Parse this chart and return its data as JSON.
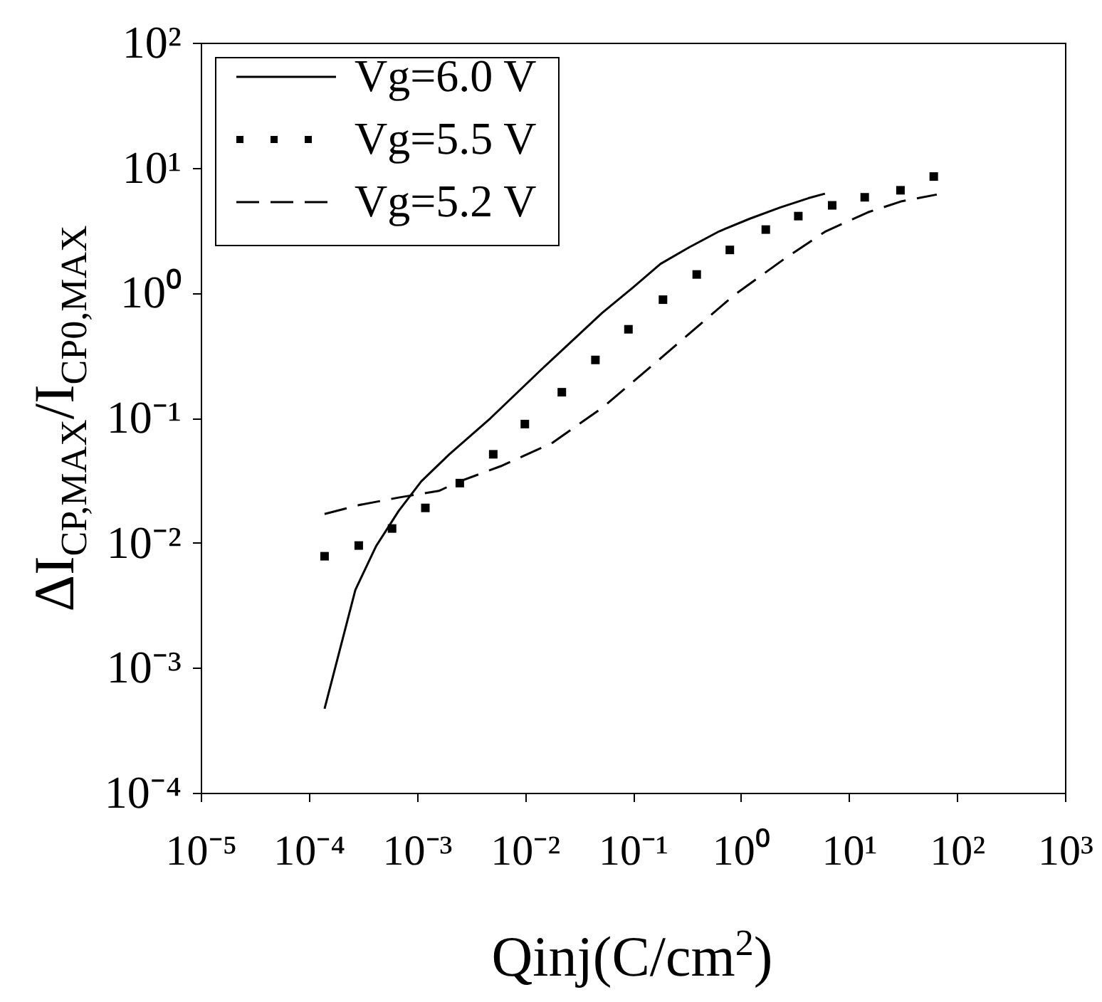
{
  "chart_data": {
    "type": "line",
    "xlabel": "Qinj(C/cm$^{2}$)",
    "ylabel": "ΔI$_{CP,MAX}$/I$_{CP0,MAX}$",
    "log": "xy",
    "grid": false,
    "legend": "top left",
    "xlim": [
      1e-05,
      1000
    ],
    "ylim": [
      0.0001,
      100
    ],
    "xticks": [
      {
        "value": 1e-05,
        "label": "10⁻⁵"
      },
      {
        "value": 0.0001,
        "label": "10⁻⁴"
      },
      {
        "value": 0.001,
        "label": "10⁻³"
      },
      {
        "value": 0.01,
        "label": "10⁻²"
      },
      {
        "value": 0.1,
        "label": "10⁻¹"
      },
      {
        "value": 1,
        "label": "10⁰"
      },
      {
        "value": 10,
        "label": "10¹"
      },
      {
        "value": 100,
        "label": "10²"
      },
      {
        "value": 1000,
        "label": "10³"
      }
    ],
    "yticks": [
      {
        "value": 0.0001,
        "label": "10⁻⁴"
      },
      {
        "value": 0.001,
        "label": "10⁻³"
      },
      {
        "value": 0.01,
        "label": "10⁻²"
      },
      {
        "value": 0.1,
        "label": "10⁻¹"
      },
      {
        "value": 1,
        "label": "10⁰"
      },
      {
        "value": 10,
        "label": "10¹"
      },
      {
        "value": 100,
        "label": "10²"
      }
    ],
    "series": [
      {
        "name": "Vg=6.0 V",
        "type": "line",
        "line_style": "solid",
        "color": "#000000",
        "x": [
          0.00014,
          0.00027,
          0.00042,
          0.00068,
          0.0011,
          0.002,
          0.0048,
          0.014,
          0.052,
          0.1,
          0.18,
          0.33,
          0.63,
          1.2,
          2.3,
          4.2,
          6.0
        ],
        "values": [
          0.00047,
          0.0042,
          0.0094,
          0.018,
          0.031,
          0.051,
          0.099,
          0.24,
          0.69,
          1.1,
          1.7,
          2.3,
          3.1,
          3.9,
          4.8,
          5.7,
          6.2
        ]
      },
      {
        "name": "Vg=5.5 V",
        "type": "scatter",
        "marker": "square",
        "color": "#000000",
        "x": [
          0.00014,
          0.00029,
          0.00059,
          0.0012,
          0.0025,
          0.0051,
          0.01,
          0.022,
          0.045,
          0.091,
          0.19,
          0.39,
          0.79,
          1.7,
          3.4,
          7.0,
          14,
          30,
          61
        ],
        "values": [
          0.0078,
          0.0095,
          0.013,
          0.019,
          0.03,
          0.051,
          0.089,
          0.16,
          0.29,
          0.51,
          0.88,
          1.4,
          2.2,
          3.2,
          4.1,
          5.0,
          5.8,
          6.6,
          8.5
        ]
      },
      {
        "name": "Vg=5.2 V",
        "type": "line",
        "line_style": "dashed",
        "color": "#000000",
        "x": [
          0.00014,
          0.00029,
          0.00068,
          0.0016,
          0.0025,
          0.006,
          0.018,
          0.052,
          0.19,
          0.87,
          2.6,
          6.1,
          15,
          31,
          65
        ],
        "values": [
          0.017,
          0.02,
          0.023,
          0.026,
          0.031,
          0.041,
          0.063,
          0.12,
          0.31,
          0.96,
          1.9,
          3.1,
          4.4,
          5.4,
          6.1
        ]
      }
    ]
  }
}
